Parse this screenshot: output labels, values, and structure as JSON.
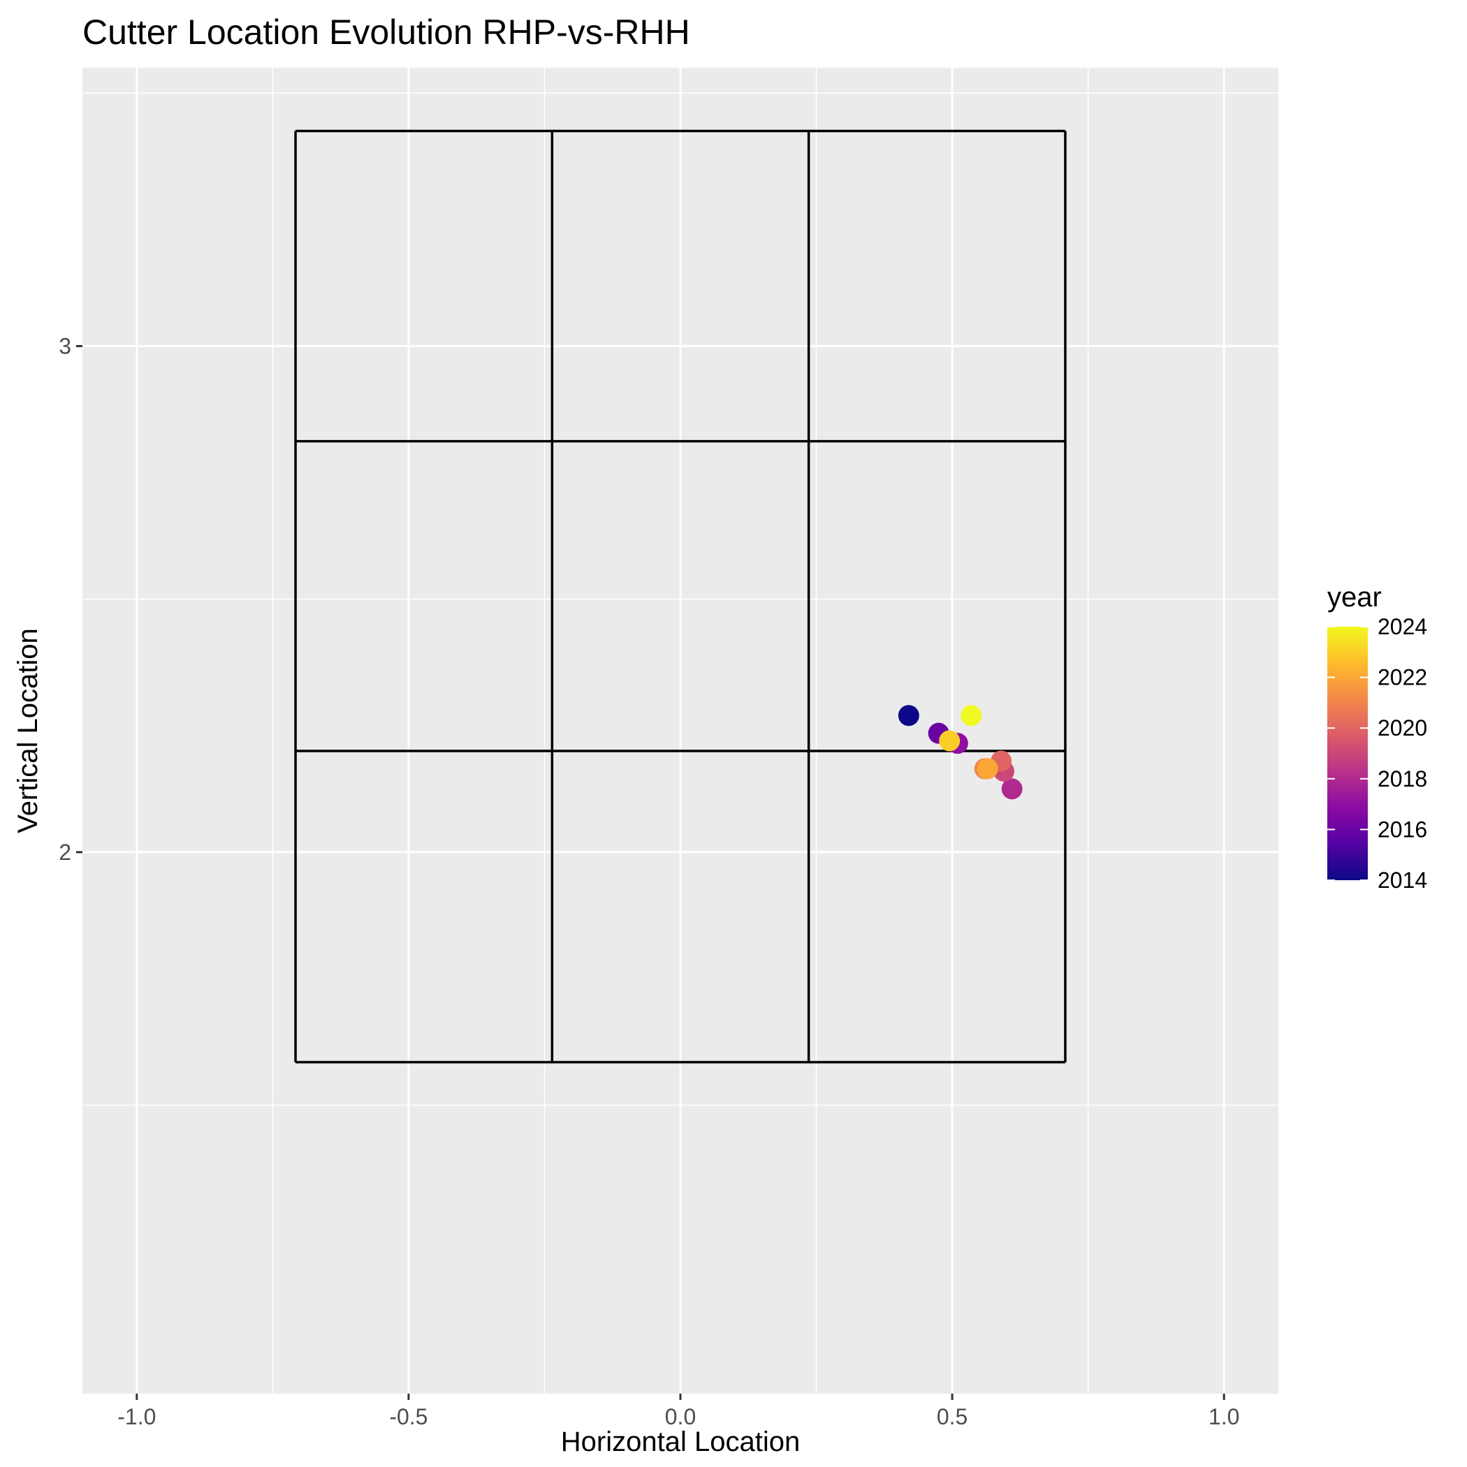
{
  "chart_data": {
    "type": "scatter",
    "title": "Cutter Location Evolution RHP-vs-RHH",
    "xlabel": "Horizontal Location",
    "ylabel": "Vertical Location",
    "xlim": [
      -1.1,
      1.1
    ],
    "ylim": [
      0.93,
      3.55
    ],
    "x_ticks": [
      -1.0,
      -0.5,
      0.0,
      0.5,
      1.0
    ],
    "x_tick_labels": [
      "-1.0",
      "-0.5",
      "0.0",
      "0.5",
      "1.0"
    ],
    "y_ticks": [
      2,
      3
    ],
    "y_tick_labels": [
      "2",
      "3"
    ],
    "grid": true,
    "strike_zone": {
      "x": [
        -0.708,
        -0.236,
        0.236,
        0.708
      ],
      "y": [
        1.585,
        2.2,
        2.812,
        3.425
      ]
    },
    "legend": {
      "title": "year",
      "position": "right",
      "type": "colorbar",
      "range": [
        2014,
        2024
      ],
      "ticks": [
        2014,
        2016,
        2018,
        2020,
        2022,
        2024
      ],
      "tick_labels": [
        "2014",
        "2016",
        "2018",
        "2020",
        "2022",
        "2024"
      ],
      "palette": [
        "#0D0887",
        "#5402A3",
        "#8B0AA5",
        "#B93289",
        "#DB5C68",
        "#F48849",
        "#FEBC2A",
        "#F0F921"
      ]
    },
    "points": [
      {
        "year": 2014,
        "x": 0.42,
        "y": 2.27
      },
      {
        "year": 2016,
        "x": 0.475,
        "y": 2.235
      },
      {
        "year": 2017,
        "x": 0.51,
        "y": 2.215
      },
      {
        "year": 2018,
        "x": 0.61,
        "y": 2.125
      },
      {
        "year": 2019,
        "x": 0.595,
        "y": 2.16
      },
      {
        "year": 2020,
        "x": 0.59,
        "y": 2.18
      },
      {
        "year": 2021,
        "x": 0.56,
        "y": 2.165
      },
      {
        "year": 2022,
        "x": 0.565,
        "y": 2.165
      },
      {
        "year": 2023,
        "x": 0.495,
        "y": 2.22
      },
      {
        "year": 2024,
        "x": 0.535,
        "y": 2.27
      }
    ]
  }
}
